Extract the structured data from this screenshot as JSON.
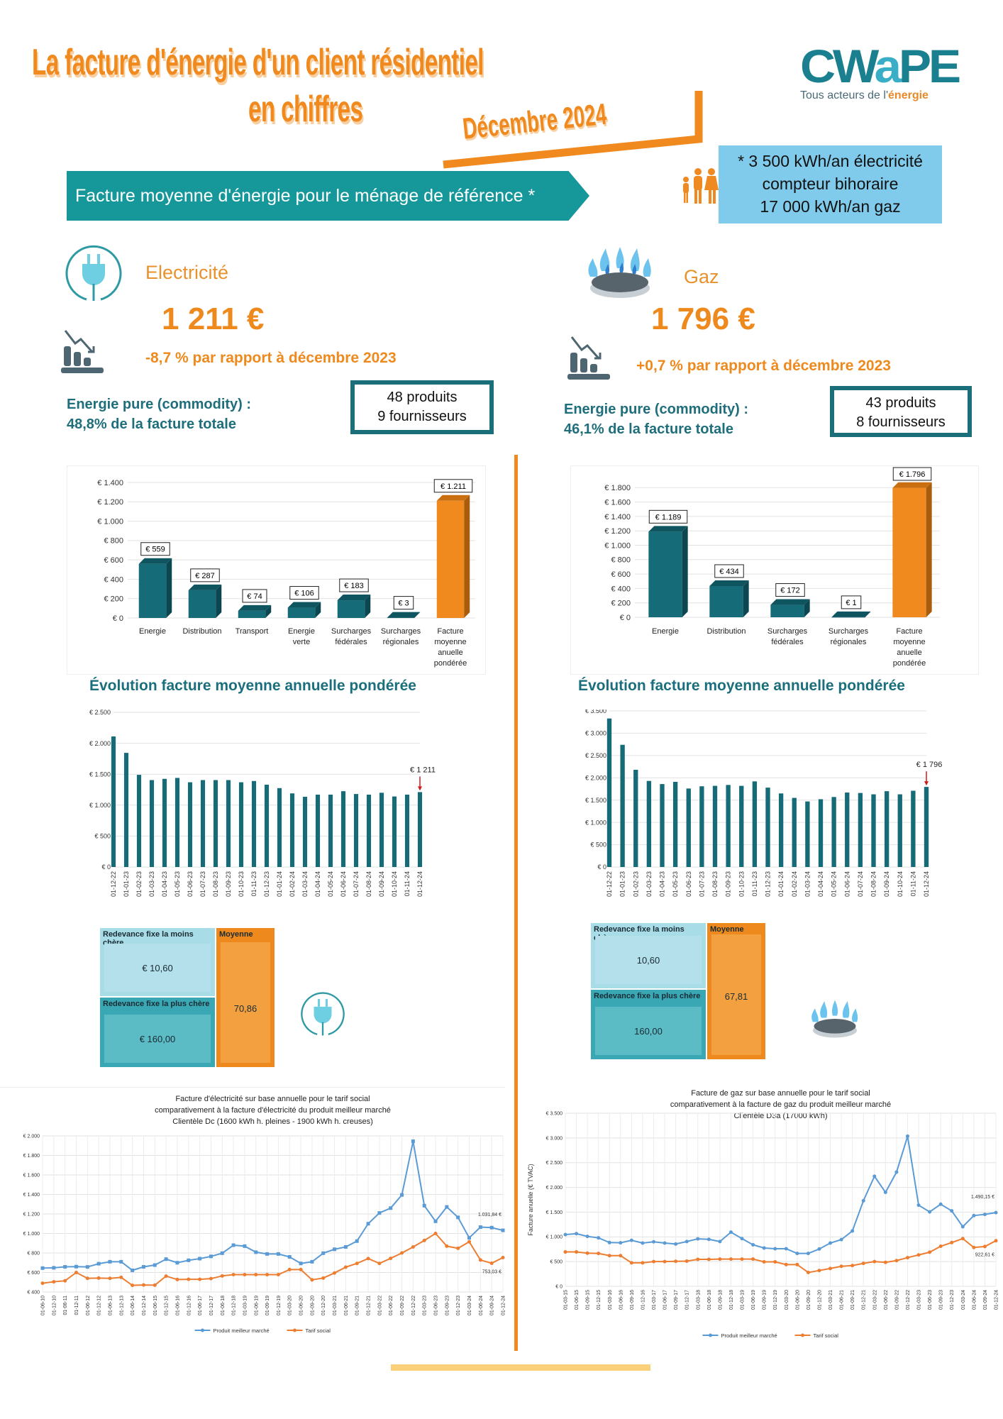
{
  "header": {
    "title_line1": "La facture d'énergie d'un client résidentiel",
    "title_line2": "en chiffres",
    "date": "Décembre 2024",
    "logo_text": "CWAPE",
    "logo_tagline_prefix": "Tous acteurs de l'",
    "logo_tagline_highlight": "énergie"
  },
  "banner": {
    "text": "Facture moyenne d'énergie pour le ménage de référence *"
  },
  "reference": {
    "lines": [
      "* 3 500 kWh/an électricité",
      "compteur bihoraire",
      "17 000 kWh/an gaz"
    ],
    "icon": "family-icon"
  },
  "electricity": {
    "label": "Electricité",
    "amount": "1 211 €",
    "change": "-8,7 %  par rapport à décembre 2023",
    "commodity_line1": "Energie pure (commodity) :",
    "commodity_line2": "48,8% de la facture totale",
    "products": "48 produits",
    "suppliers": "9 fournisseurs",
    "evolution_title": "Évolution facture moyenne annuelle pondérée",
    "icon": "plug-icon"
  },
  "gas": {
    "label": "Gaz",
    "amount": "1 796 €",
    "change": "+0,7 %  par rapport à décembre 2023",
    "commodity_line1": "Energie pure (commodity)  :",
    "commodity_line2": "46,1% de la facture totale",
    "products": "43 produits",
    "suppliers": "8 fournisseurs",
    "evolution_title": "Évolution facture moyenne annuelle pondérée",
    "icon": "gas-burner-icon"
  },
  "fixed_fees": {
    "electricity": {
      "cheapest_label": "Redevance fixe la moins chère",
      "cheapest_value": "€ 10,60",
      "priciest_label": "Redevance fixe la plus chère",
      "priciest_value": "€ 160,00",
      "average_label": "Moyenne",
      "average_value": "70,86"
    },
    "gas": {
      "cheapest_label": "Redevance fixe la moins chère",
      "cheapest_value": "10,60",
      "priciest_label": "Redevance fixe la plus chère",
      "priciest_value": "160,00",
      "average_label": "Moyenne",
      "average_value": "67,81"
    }
  },
  "colors": {
    "orange": "#f0891e",
    "teal": "#156b78",
    "banner": "#16989b",
    "light_blue": "#80cbeb",
    "blue_line": "#5b9bd5",
    "orange_line": "#ed7d31"
  },
  "chart_data": [
    {
      "id": "elec-breakdown",
      "type": "bar",
      "categories": [
        "Energie",
        "Distribution",
        "Transport",
        "Energie verte",
        "Surcharges fédérales",
        "Surcharges régionales",
        "Facture moyenne anuelle pondérée"
      ],
      "values": [
        559,
        287,
        74,
        106,
        183,
        3,
        1211
      ],
      "data_labels": [
        "€ 559",
        "€ 287",
        "€ 74",
        "€ 106",
        "€ 183",
        "€ 3",
        "€ 1.211"
      ],
      "highlight_last": true,
      "yticks": [
        0,
        200,
        400,
        600,
        800,
        1000,
        1200,
        1400
      ],
      "ytick_labels": [
        "€ 0",
        "€ 200",
        "€ 400",
        "€ 600",
        "€ 800",
        "€ 1.000",
        "€ 1.200",
        "€ 1.400"
      ],
      "ylim": [
        0,
        1400
      ],
      "grid": true,
      "style": "3d"
    },
    {
      "id": "gas-breakdown",
      "type": "bar",
      "categories": [
        "Energie",
        "Distribution",
        "Surcharges fédérales",
        "Surcharges régionales",
        "Facture moyenne anuelle pondérée"
      ],
      "values": [
        1189,
        434,
        172,
        1,
        1796
      ],
      "data_labels": [
        "€ 1.189",
        "€ 434",
        "€ 172",
        "€ 1",
        "€ 1.796"
      ],
      "highlight_last": true,
      "yticks": [
        0,
        200,
        400,
        600,
        800,
        1000,
        1200,
        1400,
        1600,
        1800
      ],
      "ytick_labels": [
        "€ 0",
        "€ 200",
        "€ 400",
        "€ 600",
        "€ 800",
        "€ 1.000",
        "€ 1.200",
        "€ 1.400",
        "€ 1.600",
        "€ 1.800"
      ],
      "ylim": [
        0,
        2000
      ],
      "grid": true,
      "style": "3d"
    },
    {
      "id": "elec-evolution",
      "type": "bar",
      "categories": [
        "01-12-22",
        "01-01-23",
        "01-02-23",
        "01-03-23",
        "01-04-23",
        "01-05-23",
        "01-06-23",
        "01-07-23",
        "01-08-23",
        "01-09-23",
        "01-10-23",
        "01-11-23",
        "01-12-23",
        "01-01-24",
        "01-02-24",
        "01-03-24",
        "01-04-24",
        "01-05-24",
        "01-06-24",
        "01-07-24",
        "01-08-24",
        "01-09-24",
        "01-10-24",
        "01-11-24",
        "01-12-24"
      ],
      "values": [
        2110,
        1845,
        1490,
        1405,
        1425,
        1440,
        1370,
        1405,
        1405,
        1405,
        1370,
        1390,
        1330,
        1275,
        1190,
        1135,
        1170,
        1170,
        1225,
        1180,
        1170,
        1200,
        1140,
        1170,
        1211
      ],
      "yticks": [
        0,
        500,
        1000,
        1500,
        2000,
        2500
      ],
      "ytick_labels": [
        "€ 0",
        "€ 500",
        "€ 1.000",
        "€ 1.500",
        "€ 2.000",
        "€ 2.500"
      ],
      "ylim": [
        0,
        2500
      ],
      "grid": true,
      "annotation": "€ 1 211"
    },
    {
      "id": "gas-evolution",
      "type": "bar",
      "categories": [
        "01-12-22",
        "01-01-23",
        "01-02-23",
        "01-03-23",
        "01-04-23",
        "01-05-23",
        "01-06-23",
        "01-07-23",
        "01-08-23",
        "01-09-23",
        "01-10-23",
        "01-11-23",
        "01-12-23",
        "01-01-24",
        "01-02-24",
        "01-03-24",
        "01-04-24",
        "01-05-24",
        "01-06-24",
        "01-07-24",
        "01-08-24",
        "01-09-24",
        "01-10-24",
        "01-11-24",
        "01-12-24"
      ],
      "values": [
        3330,
        2740,
        2180,
        1930,
        1860,
        1910,
        1760,
        1810,
        1820,
        1840,
        1820,
        1920,
        1780,
        1650,
        1550,
        1470,
        1520,
        1570,
        1670,
        1660,
        1630,
        1700,
        1630,
        1710,
        1796
      ],
      "yticks": [
        0,
        500,
        1000,
        1500,
        2000,
        2500,
        3000,
        3500
      ],
      "ytick_labels": [
        "€ 0",
        "€ 500",
        "€ 1.000",
        "€ 1.500",
        "€ 2.000",
        "€ 2.500",
        "€ 3.000",
        "€ 3.500"
      ],
      "ylim": [
        0,
        3500
      ],
      "grid": true,
      "annotation": "€ 1 796"
    },
    {
      "id": "elec-social",
      "type": "line",
      "title": [
        "Facture d'électricité sur base annuelle pour le tarif social",
        "comparativement  à la facture d'électricité du produit meilleur marché",
        "Clientèle Dc (1600 kWh h. pleines - 1900 kWh h. creuses)"
      ],
      "x": [
        "01-06-10",
        "01-12-10",
        "01-06-11",
        "01-12-11",
        "01-06-12",
        "01-12-12",
        "01-06-13",
        "01-12-13",
        "01-06-14",
        "01-12-14",
        "01-06-15",
        "01-12-15",
        "01-06-16",
        "01-12-16",
        "01-06-17",
        "01-12-17",
        "01-06-18",
        "01-12-18",
        "01-03-19",
        "01-06-19",
        "01-09-19",
        "01-12-19",
        "01-03-20",
        "01-06-20",
        "01-09-20",
        "01-12-20",
        "01-03-21",
        "01-06-21",
        "01-09-21",
        "01-12-21",
        "01-03-22",
        "01-06-22",
        "01-09-22",
        "01-12-22",
        "01-03-23",
        "01-06-23",
        "01-09-23",
        "01-12-23",
        "01-03-24",
        "01-06-24",
        "01-09-24",
        "01-12-24"
      ],
      "series": [
        {
          "name": "Produit meilleur marché",
          "color": "#5b9bd5",
          "marker": "square",
          "values": [
            645,
            648,
            658,
            660,
            657,
            690,
            710,
            710,
            622,
            658,
            676,
            737,
            700,
            725,
            742,
            765,
            798,
            880,
            870,
            808,
            790,
            790,
            760,
            693,
            710,
            798,
            838,
            862,
            922,
            1100,
            1210,
            1260,
            1395,
            1945,
            1285,
            1125,
            1272,
            1165,
            955,
            1065,
            1060,
            1032
          ],
          "end_label": "1.031,84 €"
        },
        {
          "name": "Tarif social",
          "color": "#ed7d31",
          "marker": "circle",
          "values": [
            490,
            505,
            515,
            600,
            540,
            543,
            540,
            550,
            468,
            472,
            470,
            563,
            528,
            530,
            530,
            537,
            565,
            578,
            578,
            578,
            578,
            578,
            630,
            630,
            525,
            543,
            595,
            655,
            693,
            743,
            693,
            745,
            800,
            862,
            928,
            1000,
            870,
            848,
            915,
            728,
            695,
            753
          ],
          "end_label": "753,03 €"
        }
      ],
      "yticks": [
        400,
        600,
        800,
        1000,
        1200,
        1400,
        1600,
        1800,
        2000
      ],
      "ytick_labels": [
        "€ 400",
        "€ 600",
        "€ 800",
        "€ 1.000",
        "€ 1.200",
        "€ 1.400",
        "€ 1.600",
        "€ 1.800",
        "€ 2.000"
      ],
      "ylim": [
        400,
        2000
      ],
      "grid": true,
      "legend": "bottom"
    },
    {
      "id": "gas-social",
      "type": "line",
      "title": [
        "Facture de gaz sur base annuelle pour le tarif social",
        "comparativement  à la facture de gaz du produit meilleur marché",
        "Clientèle D3a (17000  kWh)"
      ],
      "ylabel": "Facture anuelle (€ TVAC)",
      "x": [
        "01-03-15",
        "01-06-15",
        "01-09-15",
        "01-12-15",
        "01-03-16",
        "01-06-16",
        "01-09-16",
        "01-12-16",
        "01-03-17",
        "01-06-17",
        "01-09-17",
        "01-12-17",
        "01-03-18",
        "01-06-18",
        "01-09-18",
        "01-12-18",
        "01-03-19",
        "01-06-19",
        "01-09-19",
        "01-12-19",
        "01-03-20",
        "01-06-20",
        "01-09-20",
        "01-12-20",
        "01-03-21",
        "01-06-21",
        "01-09-21",
        "01-12-21",
        "01-03-22",
        "01-06-22",
        "01-09-22",
        "01-12-22",
        "01-03-23",
        "01-06-23",
        "01-09-23",
        "01-12-23",
        "01-03-24",
        "01-06-24",
        "01-09-24",
        "01-12-24"
      ],
      "series": [
        {
          "name": "Produit meilleur marché",
          "color": "#5b9bd5",
          "marker": "circle",
          "values": [
            1045,
            1065,
            1010,
            980,
            885,
            880,
            930,
            875,
            900,
            875,
            855,
            905,
            960,
            950,
            905,
            1095,
            965,
            840,
            775,
            760,
            760,
            665,
            665,
            755,
            875,
            945,
            1120,
            1730,
            2225,
            1900,
            2310,
            3035,
            1640,
            1505,
            1660,
            1525,
            1205,
            1430,
            1455,
            1490
          ],
          "end_label": "1.490,15 €"
        },
        {
          "name": "Tarif social",
          "color": "#ed7d31",
          "marker": "circle",
          "values": [
            695,
            695,
            670,
            665,
            620,
            620,
            475,
            475,
            500,
            500,
            505,
            510,
            545,
            545,
            550,
            550,
            550,
            550,
            495,
            495,
            440,
            440,
            280,
            320,
            360,
            405,
            420,
            465,
            500,
            485,
            520,
            580,
            635,
            690,
            810,
            885,
            965,
            785,
            805,
            922
          ],
          "end_label": "922,61 €"
        }
      ],
      "yticks": [
        0,
        500,
        1000,
        1500,
        2000,
        2500,
        3000,
        3500
      ],
      "ytick_labels": [
        "€ 0",
        "€ 500",
        "€ 1.000",
        "€ 1.500",
        "€ 2.000",
        "€ 2.500",
        "€ 3.000",
        "€ 3.500"
      ],
      "ylim": [
        0,
        3500
      ],
      "grid": true,
      "legend": "bottom"
    }
  ]
}
